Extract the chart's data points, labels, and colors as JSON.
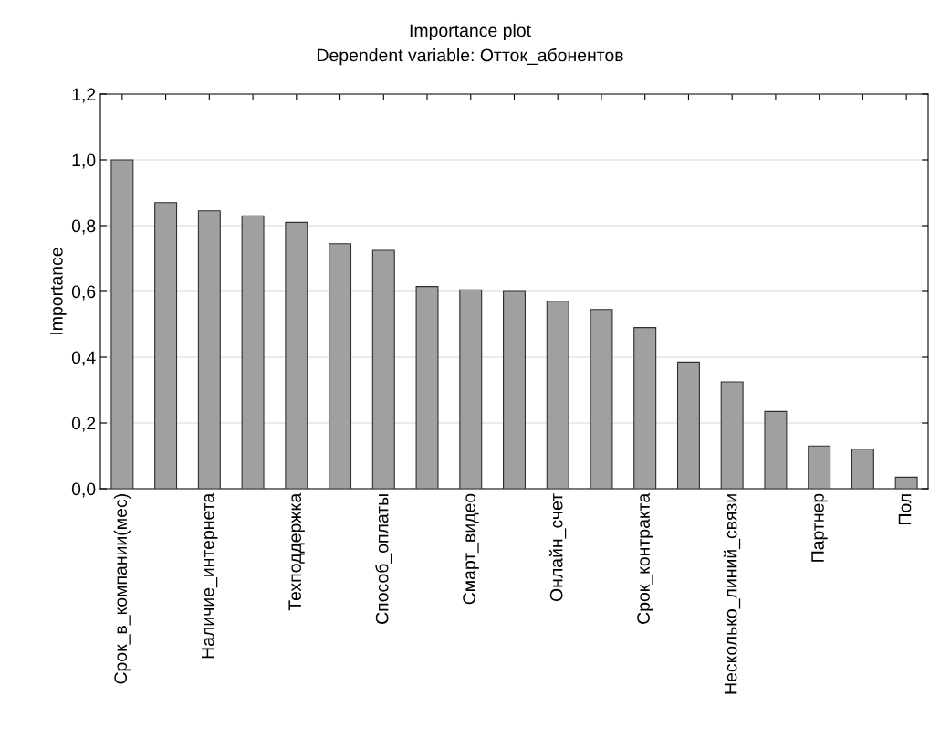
{
  "chart_data": {
    "type": "bar",
    "title": "Importance plot",
    "subtitle": "Dependent variable: Отток_абонентов",
    "ylabel": "Importance",
    "categories": [
      "Срок_в_компании(мес)",
      null,
      "Наличие_интернета",
      null,
      "Техподдержка",
      null,
      "Способ_оплаты",
      null,
      "Смарт_видео",
      null,
      "Онлайн_счет",
      null,
      "Срок_контракта",
      null,
      "Несколько_линий_связи",
      null,
      "Партнер",
      null,
      "Пол"
    ],
    "values": [
      1.0,
      0.87,
      0.845,
      0.83,
      0.81,
      0.745,
      0.725,
      0.615,
      0.605,
      0.6,
      0.57,
      0.545,
      0.49,
      0.385,
      0.325,
      0.235,
      0.13,
      0.12,
      0.035
    ],
    "color": "#a0a0a0",
    "ylim": [
      0,
      1.2
    ],
    "yticks": [
      {
        "value": 0,
        "label": "0,0"
      },
      {
        "value": 0.2,
        "label": "0,2"
      },
      {
        "value": 0.4,
        "label": "0,4"
      },
      {
        "value": 0.6,
        "label": "0,6"
      },
      {
        "value": 0.8,
        "label": "0,8"
      },
      {
        "value": 1.0,
        "label": "1,0"
      },
      {
        "value": 1.2,
        "label": "1,2"
      }
    ],
    "grid": "y",
    "legend": false
  }
}
